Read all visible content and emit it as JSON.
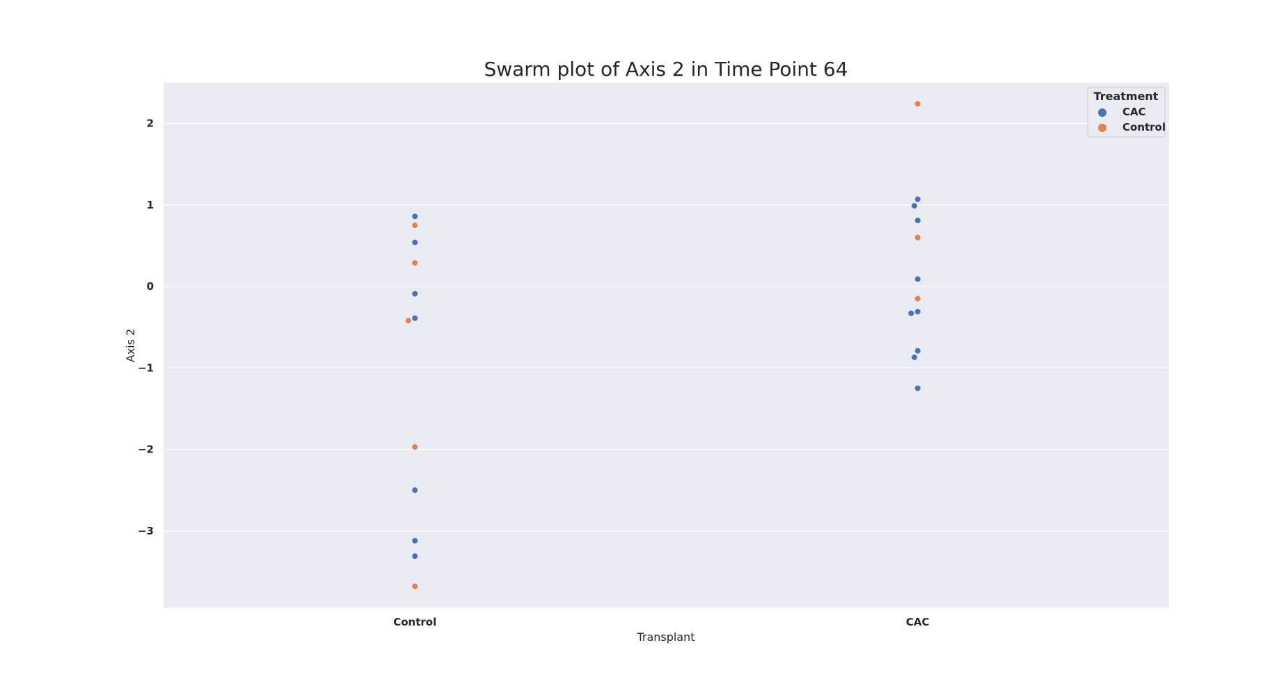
{
  "chart_data": {
    "type": "scatter",
    "subtype": "swarm",
    "title": "Swarm plot of Axis 2 in Time Point 64",
    "xlabel": "Transplant",
    "ylabel": "Axis 2",
    "categories": [
      "Control",
      "CAC"
    ],
    "ylim": [
      -3.94,
      2.5
    ],
    "yticks": [
      2,
      1,
      0,
      -1,
      -2,
      -3
    ],
    "ytick_labels": [
      "2",
      "1",
      "0",
      "−1",
      "−2",
      "−3"
    ],
    "grid": true,
    "legend": {
      "title": "Treatment",
      "placement": "top-right",
      "entries": [
        "CAC",
        "Control"
      ]
    },
    "colors": {
      "CAC": "#4c72b0",
      "Control": "#dd8452",
      "plot_background": "#eaeaf2",
      "grid": "#ffffff"
    },
    "series": [
      {
        "name": "CAC",
        "points": [
          {
            "x": "Control",
            "y": 0.86
          },
          {
            "x": "Control",
            "y": 0.54
          },
          {
            "x": "Control",
            "y": -0.09
          },
          {
            "x": "Control",
            "y": -0.39
          },
          {
            "x": "Control",
            "y": -2.5
          },
          {
            "x": "Control",
            "y": -3.12
          },
          {
            "x": "Control",
            "y": -3.31
          },
          {
            "x": "CAC",
            "y": 1.07
          },
          {
            "x": "CAC",
            "y": 0.99
          },
          {
            "x": "CAC",
            "y": 0.81
          },
          {
            "x": "CAC",
            "y": 0.09
          },
          {
            "x": "CAC",
            "y": -0.31
          },
          {
            "x": "CAC",
            "y": -0.33
          },
          {
            "x": "CAC",
            "y": -0.79
          },
          {
            "x": "CAC",
            "y": -0.87
          },
          {
            "x": "CAC",
            "y": -1.25
          }
        ]
      },
      {
        "name": "Control",
        "points": [
          {
            "x": "Control",
            "y": 0.75
          },
          {
            "x": "Control",
            "y": 0.29
          },
          {
            "x": "Control",
            "y": -0.42
          },
          {
            "x": "Control",
            "y": -1.97
          },
          {
            "x": "Control",
            "y": -3.68
          },
          {
            "x": "CAC",
            "y": 2.24
          },
          {
            "x": "CAC",
            "y": 0.6
          },
          {
            "x": "CAC",
            "y": -0.15
          }
        ]
      }
    ]
  }
}
